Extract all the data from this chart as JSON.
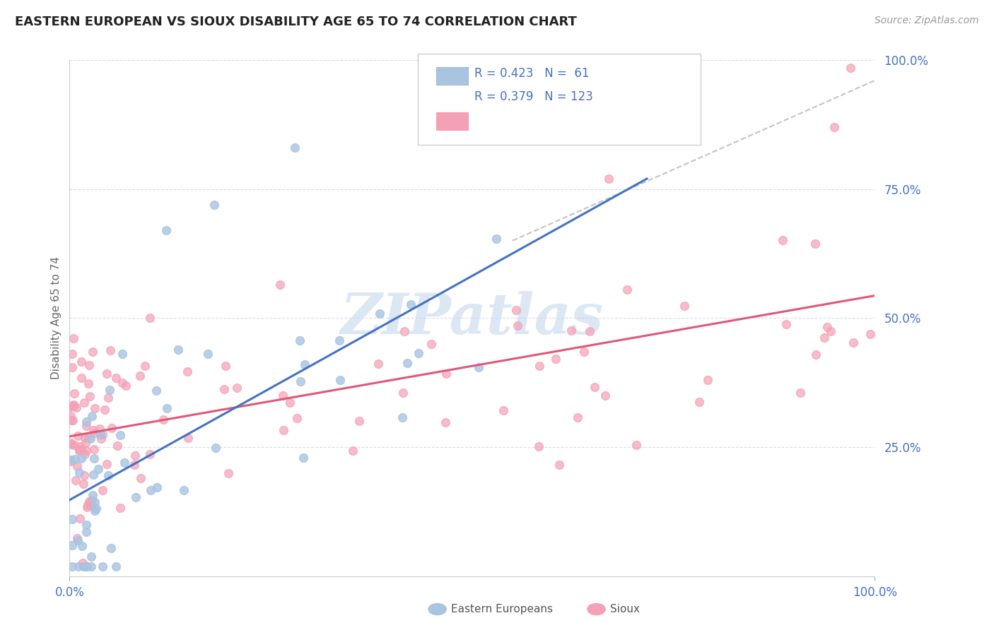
{
  "title": "EASTERN EUROPEAN VS SIOUX DISABILITY AGE 65 TO 74 CORRELATION CHART",
  "source_text": "Source: ZipAtlas.com",
  "ylabel": "Disability Age 65 to 74",
  "xlim": [
    0.0,
    1.0
  ],
  "ylim": [
    0.0,
    1.0
  ],
  "legend_labels": [
    "Eastern Europeans",
    "Sioux"
  ],
  "r_eastern": 0.423,
  "n_eastern": 61,
  "r_sioux": 0.379,
  "n_sioux": 123,
  "color_eastern": "#a8c4e0",
  "color_sioux": "#f4a0b5",
  "color_line_eastern": "#4472c4",
  "color_line_sioux": "#e05878",
  "color_dashed": "#aaaaaa",
  "color_ytick": "#4472c4",
  "color_xtick": "#4472c4",
  "watermark_color": "#c5d8ee",
  "background_color": "#ffffff",
  "grid_color": "#d8d8e8",
  "title_color": "#222222"
}
